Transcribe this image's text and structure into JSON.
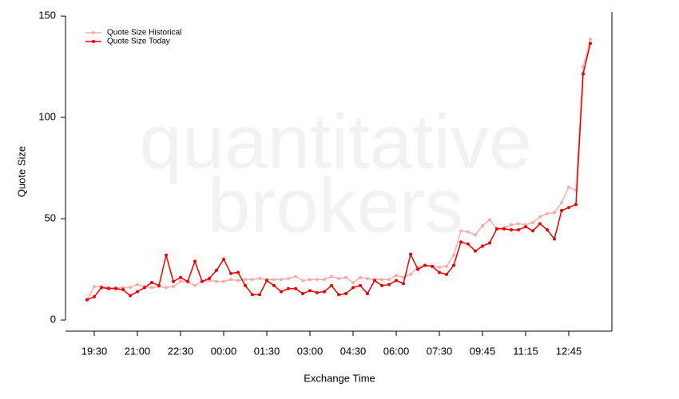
{
  "chart_data": {
    "type": "line",
    "watermark": [
      "quantitative",
      "brokers"
    ],
    "xlabel": "Exchange Time",
    "ylabel": "Quote Size",
    "categories": [
      null,
      "19:30",
      null,
      null,
      null,
      null,
      null,
      "21:00",
      null,
      null,
      null,
      null,
      null,
      "22:30",
      null,
      null,
      null,
      null,
      null,
      "00:00",
      null,
      null,
      null,
      null,
      null,
      "01:30",
      null,
      null,
      null,
      null,
      null,
      "03:00",
      null,
      null,
      null,
      null,
      null,
      "04:30",
      null,
      null,
      null,
      null,
      null,
      "06:00",
      null,
      null,
      null,
      null,
      null,
      "07:30",
      null,
      null,
      null,
      null,
      null,
      "09:45",
      null,
      null,
      null,
      null,
      null,
      "11:15",
      null,
      null,
      null,
      null,
      null,
      "12:45",
      null,
      null,
      null
    ],
    "series": [
      {
        "name": "Quote Size Historical",
        "color": "#ffaaaa",
        "values": [
          10,
          16.5,
          16.5,
          16,
          16,
          16,
          16,
          17.5,
          16.5,
          16,
          16.5,
          16,
          16.5,
          19,
          19,
          17,
          19,
          19.5,
          19,
          19,
          20,
          19.5,
          20,
          20,
          20.5,
          20,
          20,
          20,
          20.5,
          21.5,
          19.5,
          20,
          20,
          20,
          21.5,
          20.5,
          21,
          18.5,
          21,
          20.5,
          20,
          20,
          20,
          22,
          21,
          22.5,
          26,
          27,
          26.5,
          26,
          26.5,
          32,
          44,
          43.5,
          42,
          46.5,
          49.5,
          45,
          45.5,
          47,
          47.5,
          47,
          48,
          51,
          52.5,
          53,
          58,
          65.5,
          64,
          125,
          138.5
        ]
      },
      {
        "name": "Quote Size Today",
        "color": "#ee0000",
        "values": [
          10,
          11.5,
          16,
          15.5,
          15.5,
          15,
          12,
          14,
          16,
          18.5,
          17,
          32,
          19,
          21,
          19,
          29,
          19,
          20.5,
          24.5,
          30,
          23,
          23.5,
          17,
          12.5,
          12.5,
          19.5,
          17,
          14,
          15.5,
          15.5,
          13,
          14.5,
          13.5,
          14,
          17,
          12.5,
          13,
          16,
          17,
          13,
          19.5,
          17,
          17.5,
          19.5,
          18,
          32.5,
          25,
          27,
          26.5,
          23.5,
          22.5,
          27,
          38.5,
          37.5,
          34,
          36.5,
          38,
          45,
          45,
          44.5,
          44.5,
          46,
          44,
          47.5,
          44.5,
          40,
          54,
          55.5,
          57,
          121.5,
          136.5
        ]
      }
    ],
    "ylim": [
      -5.5,
      152
    ],
    "yticks": [
      0,
      50,
      100,
      150
    ],
    "legend": "top-left"
  }
}
